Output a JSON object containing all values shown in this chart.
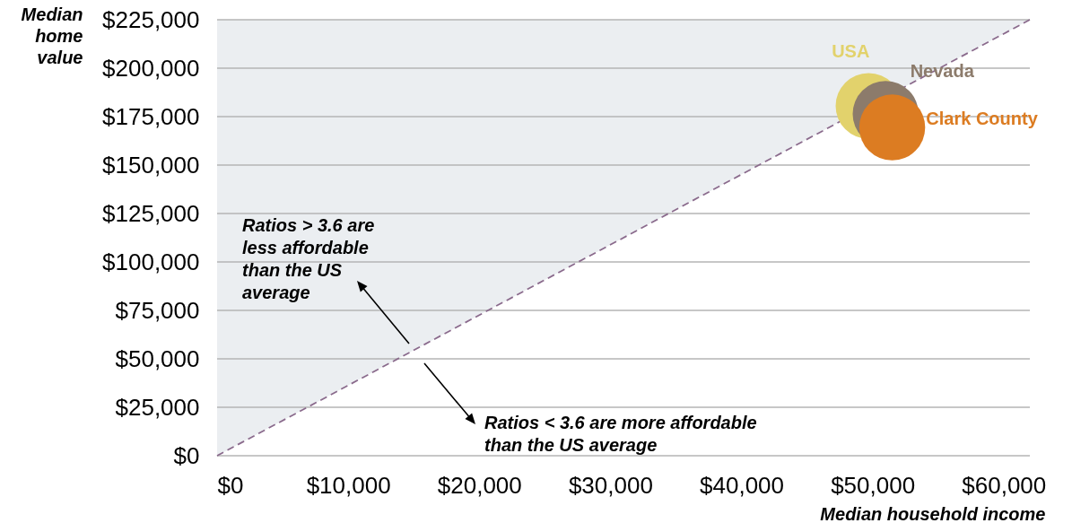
{
  "chart_data": {
    "type": "bubble",
    "xlabel": "Median household income",
    "ylabel": "Median home value",
    "xlim": [
      0,
      62000
    ],
    "ylim": [
      0,
      225000
    ],
    "xticks": [
      {
        "value": 0,
        "label": "$0"
      },
      {
        "value": 10000,
        "label": "$10,000"
      },
      {
        "value": 20000,
        "label": "$20,000"
      },
      {
        "value": 30000,
        "label": "$30,000"
      },
      {
        "value": 40000,
        "label": "$40,000"
      },
      {
        "value": 50000,
        "label": "$50,000"
      },
      {
        "value": 60000,
        "label": "$60,000"
      }
    ],
    "yticks": [
      {
        "value": 0,
        "label": "$0"
      },
      {
        "value": 25000,
        "label": "$25,000"
      },
      {
        "value": 50000,
        "label": "$50,000"
      },
      {
        "value": 75000,
        "label": "$75,000"
      },
      {
        "value": 100000,
        "label": "$100,000"
      },
      {
        "value": 125000,
        "label": "$125,000"
      },
      {
        "value": 150000,
        "label": "$150,000"
      },
      {
        "value": 175000,
        "label": "$175,000"
      },
      {
        "value": 200000,
        "label": "$200,000"
      },
      {
        "value": 225000,
        "label": "$225,000"
      }
    ],
    "grid": "y",
    "series": [
      {
        "type": "line",
        "color": "#8a6a8c",
        "line_style": "dashed",
        "x": [
          0,
          62000
        ],
        "values": [
          0,
          225000
        ],
        "lower": [
          0,
          225000
        ],
        "upper": [
          225000,
          225000
        ]
      },
      {
        "name": "USA",
        "color": "#e2d26c",
        "x": [
          49700
        ],
        "values": [
          180500
        ],
        "sizes": [
          1
        ]
      },
      {
        "name": "Nevada",
        "color": "#8c7b6b",
        "x": [
          51000
        ],
        "values": [
          176400
        ],
        "sizes": [
          1
        ]
      },
      {
        "name": "Clark County",
        "color": "#dc7c22",
        "x": [
          51500
        ],
        "values": [
          169400
        ],
        "sizes": [
          1
        ]
      }
    ],
    "annotations": [
      "Ratios > 3.6 are less affordable than the US average",
      "Ratios < 3.6 are more affordable than the US average"
    ]
  }
}
